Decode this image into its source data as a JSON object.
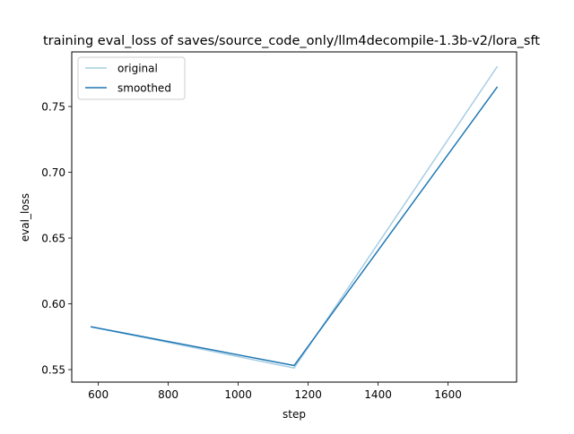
{
  "chart_data": {
    "type": "line",
    "title": "training eval_loss of saves/source_code_only/llm4decompile-1.3b-v2/lora_sft",
    "xlabel": "step",
    "ylabel": "eval_loss",
    "xlim": [
      524,
      1796
    ],
    "ylim": [
      0.5405,
      0.7915
    ],
    "xticks": [
      600,
      800,
      1000,
      1200,
      1400,
      1600
    ],
    "yticks": [
      0.55,
      0.6,
      0.65,
      0.7,
      0.75
    ],
    "ytick_labels": [
      "0.55",
      "0.60",
      "0.65",
      "0.70",
      "0.75"
    ],
    "grid": false,
    "legend_position": "top-left",
    "series": [
      {
        "name": "original",
        "color": "#a6cde3",
        "x": [
          580,
          1160,
          1740
        ],
        "y": [
          0.5825,
          0.5512,
          0.7801
        ]
      },
      {
        "name": "smoothed",
        "color": "#1f77b4",
        "x": [
          580,
          1160,
          1740
        ],
        "y": [
          0.5825,
          0.5531,
          0.7646
        ]
      }
    ]
  }
}
